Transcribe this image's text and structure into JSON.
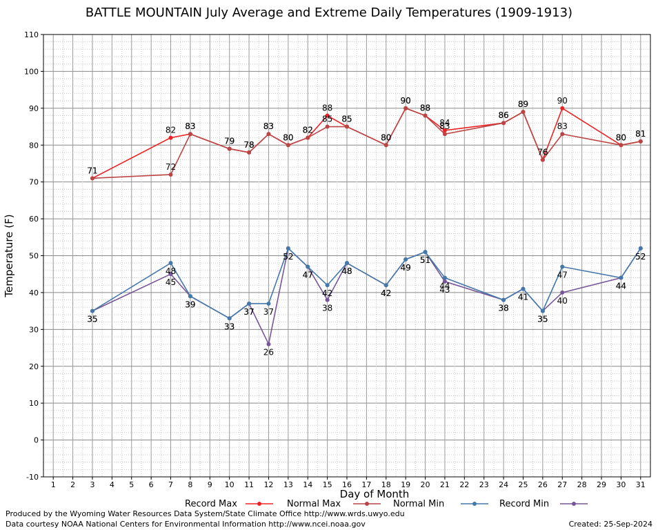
{
  "title": "BATTLE MOUNTAIN July Average and Extreme Daily Temperatures (1909-1913)",
  "footer": {
    "produced_by": "Produced by the Wyoming Water Resources Data System/State Climate Office http://www.wrds.uwyo.edu",
    "courtesy": "Data courtesy NOAA National Centers for Environmental Information http://www.ncei.noaa.gov",
    "created": "Created:  25-Sep-2024"
  },
  "colors": {
    "record_max": "#ee2222",
    "normal_max": "#bb4444",
    "normal_min": "#4477aa",
    "record_min": "#775599"
  },
  "chart_data": {
    "type": "line",
    "xlabel": "Day of Month",
    "ylabel": "Temperature (F)",
    "xlim": [
      0.5,
      31.5
    ],
    "ylim": [
      -10,
      110
    ],
    "xticks": [
      1,
      2,
      3,
      4,
      5,
      6,
      7,
      8,
      9,
      10,
      11,
      12,
      13,
      14,
      15,
      16,
      17,
      18,
      19,
      20,
      21,
      22,
      23,
      24,
      25,
      26,
      27,
      28,
      29,
      30,
      31
    ],
    "yticks": [
      -10,
      0,
      10,
      20,
      30,
      40,
      50,
      60,
      70,
      80,
      90,
      100,
      110
    ],
    "grid": true,
    "legend_position": "bottom",
    "series": [
      {
        "name": "Record Max",
        "x": [
          3,
          7,
          8,
          10,
          11,
          12,
          13,
          14,
          15,
          16,
          18,
          19,
          20,
          21,
          24,
          25,
          26,
          27,
          30,
          31
        ],
        "values": [
          71,
          82,
          83,
          79,
          78,
          83,
          80,
          82,
          88,
          85,
          80,
          90,
          88,
          84,
          86,
          89,
          76,
          90,
          80,
          81
        ]
      },
      {
        "name": "Normal Max",
        "x": [
          3,
          7,
          8,
          10,
          11,
          12,
          13,
          14,
          15,
          16,
          18,
          19,
          20,
          21,
          24,
          25,
          26,
          27,
          30,
          31
        ],
        "values": [
          71,
          72,
          83,
          79,
          78,
          83,
          80,
          82,
          85,
          85,
          80,
          90,
          88,
          83,
          86,
          89,
          76,
          83,
          80,
          81
        ]
      },
      {
        "name": "Normal Min",
        "x": [
          3,
          7,
          8,
          10,
          11,
          12,
          13,
          14,
          15,
          16,
          18,
          19,
          20,
          21,
          24,
          25,
          26,
          27,
          30,
          31
        ],
        "values": [
          35,
          48,
          39,
          33,
          37,
          37,
          52,
          47,
          42,
          48,
          42,
          49,
          51,
          44,
          38,
          41,
          35,
          47,
          44,
          52
        ]
      },
      {
        "name": "Record Min",
        "x": [
          3,
          7,
          8,
          10,
          11,
          12,
          13,
          14,
          15,
          16,
          18,
          19,
          20,
          21,
          24,
          25,
          26,
          27,
          30,
          31
        ],
        "values": [
          35,
          45,
          39,
          33,
          37,
          26,
          52,
          47,
          38,
          48,
          42,
          49,
          51,
          43,
          38,
          41,
          35,
          40,
          44,
          52
        ]
      }
    ]
  }
}
